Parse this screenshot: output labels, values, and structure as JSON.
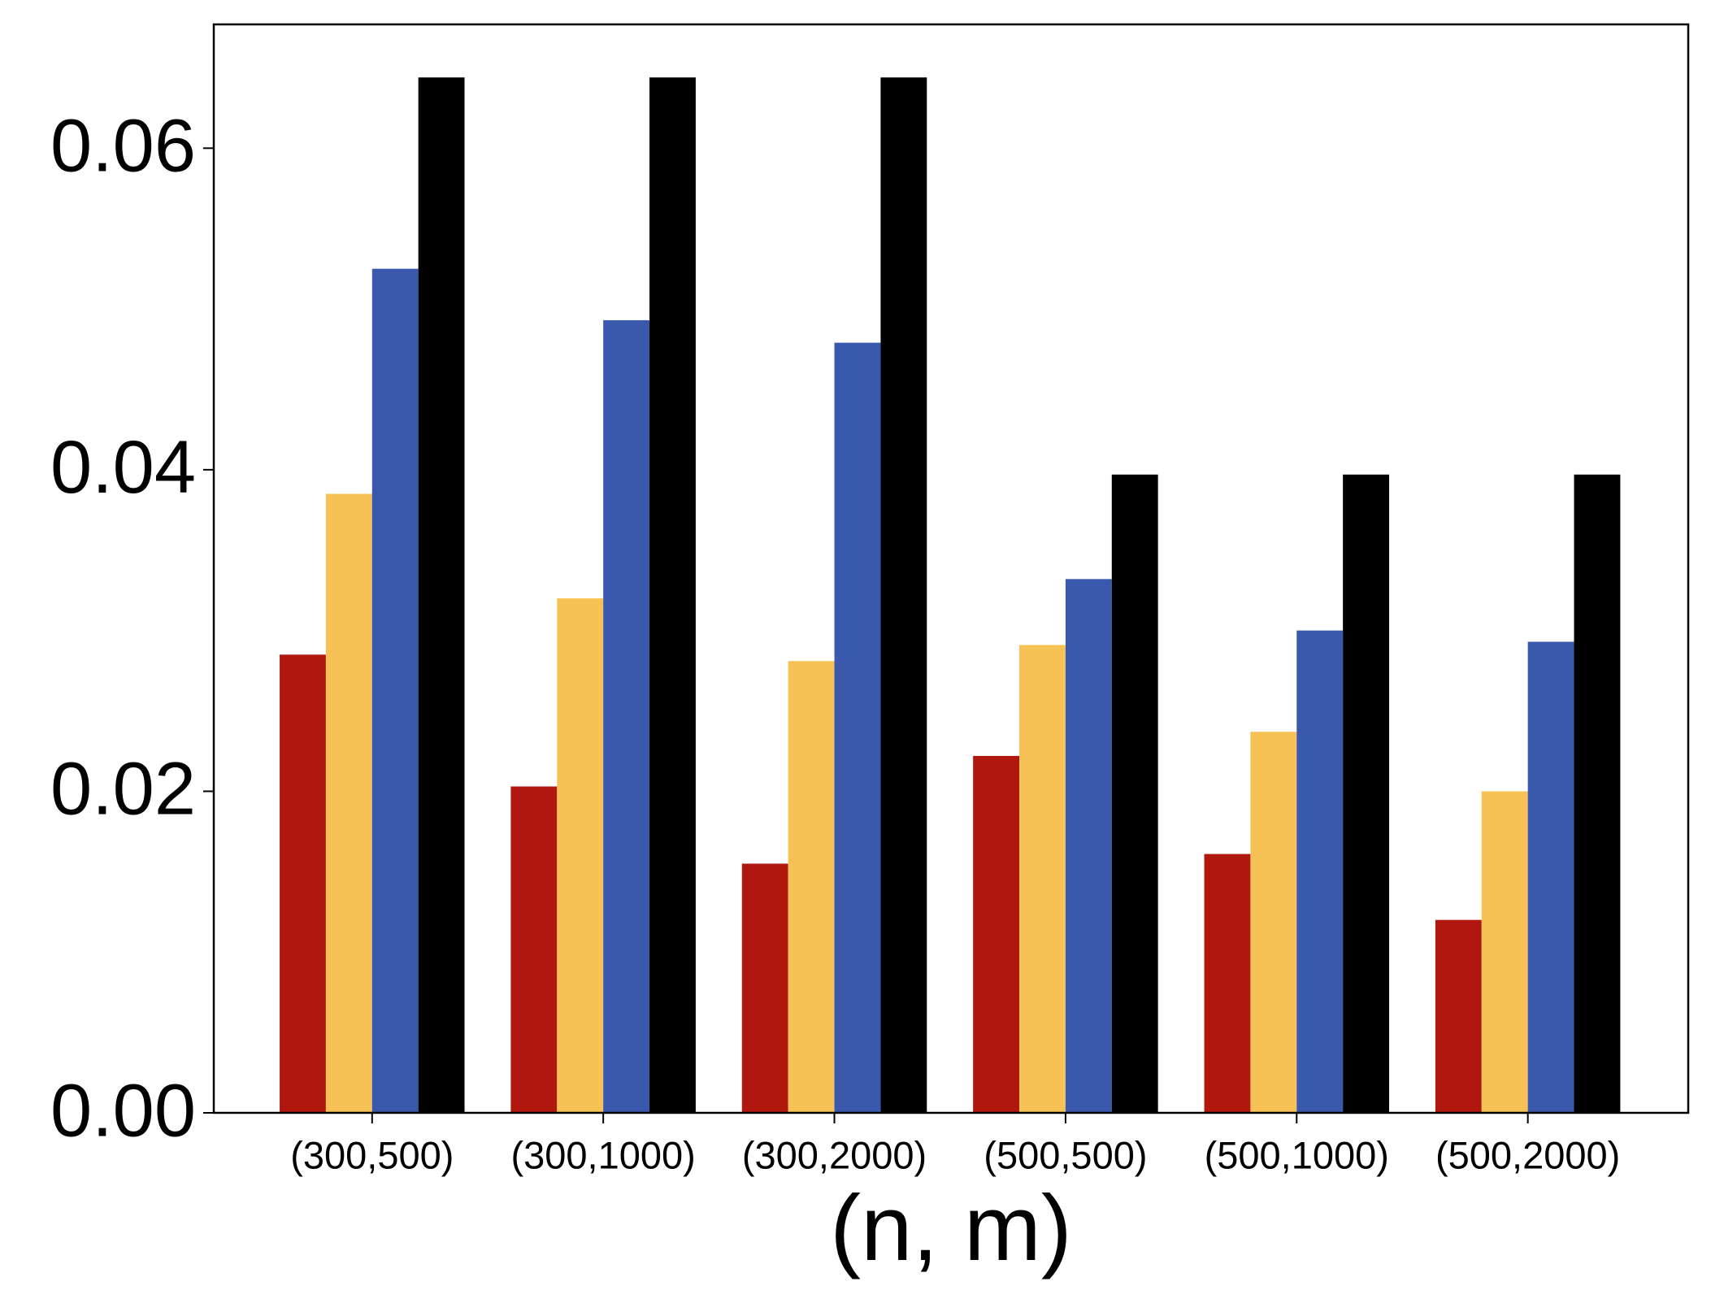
{
  "chart_data": {
    "type": "bar",
    "x_label": "(n, m)",
    "categories": [
      "(300,500)",
      "(300,1000)",
      "(300,2000)",
      "(500,500)",
      "(500,1000)",
      "(500,2000)"
    ],
    "series": [
      {
        "color": "#b0170f",
        "values": [
          0.0285,
          0.0203,
          0.0155,
          0.0222,
          0.0161,
          0.012
        ]
      },
      {
        "color": "#f7c255",
        "values": [
          0.0385,
          0.032,
          0.0281,
          0.0291,
          0.0237,
          0.02
        ]
      },
      {
        "color": "#3a59ad",
        "values": [
          0.0525,
          0.0493,
          0.0479,
          0.0332,
          0.03,
          0.0293
        ]
      },
      {
        "color": "#000000",
        "values": [
          0.0644,
          0.0644,
          0.0644,
          0.0397,
          0.0397,
          0.0397
        ]
      }
    ],
    "ylim": [
      0,
      0.0677
    ],
    "yticks": [
      {
        "value": 0,
        "label": "0.00"
      },
      0.02,
      0.04,
      0.06
    ],
    "grid": false
  }
}
